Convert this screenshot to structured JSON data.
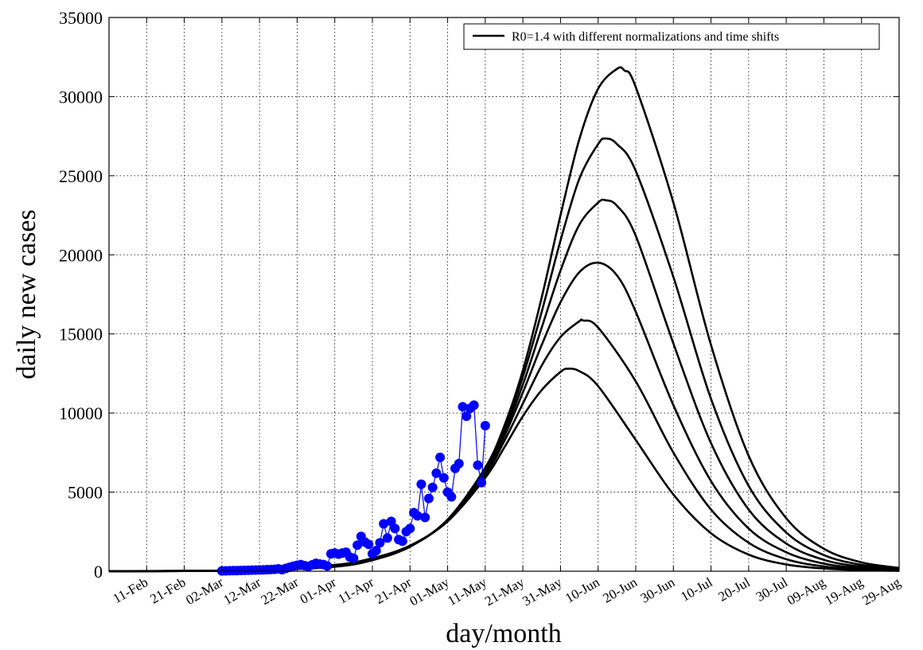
{
  "chart_data": {
    "type": "line",
    "xlabel": "day/month",
    "ylabel": "daily new cases",
    "x_start": "2020-02-01",
    "xlim_days": [
      0,
      210
    ],
    "ylim": [
      0,
      35000
    ],
    "y_ticks": [
      0,
      5000,
      10000,
      15000,
      20000,
      25000,
      30000,
      35000
    ],
    "x_ticks": [
      {
        "day": 10,
        "label": "11-Feb"
      },
      {
        "day": 20,
        "label": "21-Feb"
      },
      {
        "day": 30,
        "label": "02-Mar"
      },
      {
        "day": 40,
        "label": "12-Mar"
      },
      {
        "day": 50,
        "label": "22-Mar"
      },
      {
        "day": 60,
        "label": "01-Apr"
      },
      {
        "day": 70,
        "label": "11-Apr"
      },
      {
        "day": 80,
        "label": "21-Apr"
      },
      {
        "day": 90,
        "label": "01-May"
      },
      {
        "day": 100,
        "label": "11-May"
      },
      {
        "day": 110,
        "label": "21-May"
      },
      {
        "day": 120,
        "label": "31-May"
      },
      {
        "day": 130,
        "label": "10-Jun"
      },
      {
        "day": 140,
        "label": "20-Jun"
      },
      {
        "day": 150,
        "label": "30-Jun"
      },
      {
        "day": 160,
        "label": "10-Jul"
      },
      {
        "day": 170,
        "label": "20-Jul"
      },
      {
        "day": 180,
        "label": "30-Jul"
      },
      {
        "day": 190,
        "label": "09-Aug"
      },
      {
        "day": 200,
        "label": "19-Aug"
      },
      {
        "day": 210,
        "label": "29-Aug"
      }
    ],
    "grid": true,
    "legend_position": "top-right",
    "legend_label": "R0=1.4 with different normalizations and time shifts",
    "series": [
      {
        "kind": "model",
        "color": "#000000",
        "values": [
          [
            0,
            5
          ],
          [
            20,
            25
          ],
          [
            40,
            100
          ],
          [
            60,
            400
          ],
          [
            70,
            820
          ],
          [
            80,
            1620
          ],
          [
            90,
            3150
          ],
          [
            100,
            5900
          ],
          [
            105,
            7800
          ],
          [
            110,
            9800
          ],
          [
            115,
            11450
          ],
          [
            120,
            12600
          ],
          [
            122,
            12800
          ],
          [
            125,
            12650
          ],
          [
            130,
            11700
          ],
          [
            140,
            8300
          ],
          [
            150,
            4850
          ],
          [
            160,
            2400
          ],
          [
            170,
            1050
          ],
          [
            180,
            430
          ],
          [
            190,
            170
          ],
          [
            200,
            65
          ],
          [
            210,
            25
          ]
        ]
      },
      {
        "kind": "model",
        "color": "#000000",
        "values": [
          [
            0,
            4
          ],
          [
            20,
            20
          ],
          [
            40,
            85
          ],
          [
            60,
            370
          ],
          [
            70,
            790
          ],
          [
            80,
            1600
          ],
          [
            90,
            3200
          ],
          [
            100,
            6100
          ],
          [
            105,
            8200
          ],
          [
            110,
            10600
          ],
          [
            115,
            13000
          ],
          [
            120,
            14800
          ],
          [
            125,
            15800
          ],
          [
            126,
            15850
          ],
          [
            130,
            15400
          ],
          [
            140,
            12000
          ],
          [
            150,
            7500
          ],
          [
            160,
            3900
          ],
          [
            170,
            1800
          ],
          [
            180,
            760
          ],
          [
            190,
            300
          ],
          [
            200,
            115
          ],
          [
            210,
            45
          ]
        ]
      },
      {
        "kind": "model",
        "color": "#000000",
        "values": [
          [
            0,
            3
          ],
          [
            20,
            17
          ],
          [
            40,
            75
          ],
          [
            60,
            340
          ],
          [
            70,
            760
          ],
          [
            80,
            1580
          ],
          [
            90,
            3220
          ],
          [
            100,
            6250
          ],
          [
            105,
            8500
          ],
          [
            110,
            11300
          ],
          [
            115,
            14300
          ],
          [
            120,
            17000
          ],
          [
            125,
            18900
          ],
          [
            130,
            19500
          ],
          [
            135,
            18700
          ],
          [
            140,
            16400
          ],
          [
            150,
            10500
          ],
          [
            160,
            5700
          ],
          [
            170,
            2700
          ],
          [
            180,
            1200
          ],
          [
            190,
            480
          ],
          [
            200,
            185
          ],
          [
            210,
            70
          ]
        ]
      },
      {
        "kind": "model",
        "color": "#000000",
        "values": [
          [
            0,
            3
          ],
          [
            20,
            15
          ],
          [
            40,
            68
          ],
          [
            60,
            320
          ],
          [
            70,
            740
          ],
          [
            80,
            1570
          ],
          [
            90,
            3240
          ],
          [
            100,
            6350
          ],
          [
            105,
            8750
          ],
          [
            110,
            11800
          ],
          [
            115,
            15400
          ],
          [
            120,
            19000
          ],
          [
            125,
            21900
          ],
          [
            130,
            23300
          ],
          [
            132,
            23450
          ],
          [
            135,
            23100
          ],
          [
            140,
            21200
          ],
          [
            150,
            14400
          ],
          [
            160,
            8100
          ],
          [
            170,
            3900
          ],
          [
            180,
            1750
          ],
          [
            190,
            720
          ],
          [
            200,
            280
          ],
          [
            210,
            105
          ]
        ]
      },
      {
        "kind": "model",
        "color": "#000000",
        "values": [
          [
            0,
            2
          ],
          [
            20,
            13
          ],
          [
            40,
            62
          ],
          [
            60,
            300
          ],
          [
            70,
            720
          ],
          [
            80,
            1560
          ],
          [
            90,
            3260
          ],
          [
            100,
            6450
          ],
          [
            105,
            8950
          ],
          [
            110,
            12300
          ],
          [
            115,
            16400
          ],
          [
            120,
            20900
          ],
          [
            125,
            24800
          ],
          [
            130,
            27000
          ],
          [
            132,
            27350
          ],
          [
            135,
            27000
          ],
          [
            140,
            25300
          ],
          [
            150,
            18600
          ],
          [
            160,
            10900
          ],
          [
            170,
            5400
          ],
          [
            180,
            2450
          ],
          [
            190,
            1020
          ],
          [
            200,
            400
          ],
          [
            210,
            150
          ]
        ]
      },
      {
        "kind": "model",
        "color": "#000000",
        "values": [
          [
            0,
            2
          ],
          [
            20,
            12
          ],
          [
            40,
            58
          ],
          [
            60,
            285
          ],
          [
            70,
            700
          ],
          [
            80,
            1550
          ],
          [
            90,
            3270
          ],
          [
            100,
            6550
          ],
          [
            105,
            9150
          ],
          [
            110,
            12700
          ],
          [
            115,
            17300
          ],
          [
            120,
            22500
          ],
          [
            125,
            27300
          ],
          [
            130,
            30500
          ],
          [
            135,
            31750
          ],
          [
            137,
            31650
          ],
          [
            140,
            30600
          ],
          [
            150,
            23300
          ],
          [
            160,
            14300
          ],
          [
            170,
            7300
          ],
          [
            180,
            3350
          ],
          [
            190,
            1420
          ],
          [
            200,
            560
          ],
          [
            210,
            210
          ]
        ]
      },
      {
        "kind": "data",
        "color": "#0000ff",
        "values": [
          [
            30,
            20
          ],
          [
            31,
            25
          ],
          [
            32,
            30
          ],
          [
            33,
            35
          ],
          [
            34,
            40
          ],
          [
            35,
            50
          ],
          [
            36,
            55
          ],
          [
            37,
            60
          ],
          [
            38,
            70
          ],
          [
            39,
            75
          ],
          [
            40,
            80
          ],
          [
            41,
            90
          ],
          [
            42,
            100
          ],
          [
            43,
            110
          ],
          [
            44,
            120
          ],
          [
            45,
            150
          ],
          [
            46,
            100
          ],
          [
            47,
            180
          ],
          [
            48,
            250
          ],
          [
            49,
            320
          ],
          [
            50,
            380
          ],
          [
            51,
            420
          ],
          [
            52,
            350
          ],
          [
            53,
            300
          ],
          [
            54,
            400
          ],
          [
            55,
            500
          ],
          [
            56,
            450
          ],
          [
            57,
            420
          ],
          [
            58,
            330
          ],
          [
            59,
            1100
          ],
          [
            60,
            1150
          ],
          [
            61,
            1080
          ],
          [
            62,
            1150
          ],
          [
            63,
            1200
          ],
          [
            64,
            900
          ],
          [
            65,
            820
          ],
          [
            66,
            1650
          ],
          [
            67,
            2200
          ],
          [
            68,
            1850
          ],
          [
            69,
            1700
          ],
          [
            70,
            1100
          ],
          [
            71,
            1300
          ],
          [
            72,
            1800
          ],
          [
            73,
            3000
          ],
          [
            74,
            2100
          ],
          [
            75,
            3150
          ],
          [
            76,
            2700
          ],
          [
            77,
            2000
          ],
          [
            78,
            1900
          ],
          [
            79,
            2500
          ],
          [
            80,
            2700
          ],
          [
            81,
            3700
          ],
          [
            82,
            3500
          ],
          [
            83,
            5500
          ],
          [
            84,
            3400
          ],
          [
            85,
            4600
          ],
          [
            86,
            5300
          ],
          [
            87,
            6200
          ],
          [
            88,
            7200
          ],
          [
            89,
            5900
          ],
          [
            90,
            5000
          ],
          [
            91,
            4700
          ],
          [
            92,
            6500
          ],
          [
            93,
            6800
          ],
          [
            94,
            10400
          ],
          [
            95,
            9800
          ],
          [
            96,
            10300
          ],
          [
            97,
            10500
          ],
          [
            98,
            6700
          ],
          [
            99,
            5600
          ],
          [
            100,
            9200
          ]
        ]
      }
    ]
  }
}
